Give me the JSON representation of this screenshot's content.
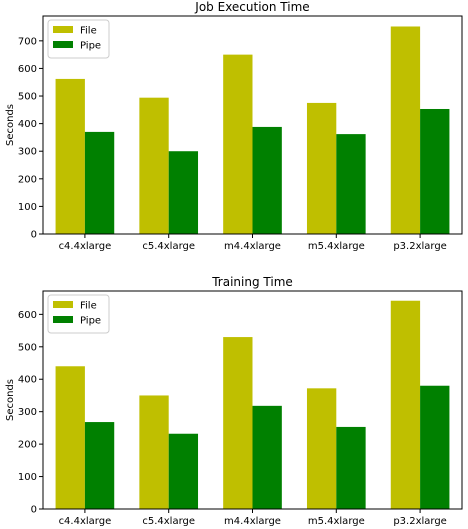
{
  "chart_data": [
    {
      "type": "bar",
      "title": "Job Execution Time",
      "xlabel": "",
      "ylabel": "Seconds",
      "categories": [
        "c4.4xlarge",
        "c5.4xlarge",
        "m4.4xlarge",
        "m5.4xlarge",
        "p3.2xlarge"
      ],
      "series": [
        {
          "name": "File",
          "color": "#bfbf00",
          "values": [
            562,
            494,
            650,
            475,
            752
          ]
        },
        {
          "name": "Pipe",
          "color": "#008000",
          "values": [
            370,
            300,
            388,
            362,
            453
          ]
        }
      ],
      "ylim": [
        0,
        790
      ],
      "yticks": [
        0,
        100,
        200,
        300,
        400,
        500,
        600,
        700
      ],
      "legend": "upper-left",
      "grid": false
    },
    {
      "type": "bar",
      "title": "Training Time",
      "xlabel": "",
      "ylabel": "Seconds",
      "categories": [
        "c4.4xlarge",
        "c5.4xlarge",
        "m4.4xlarge",
        "m5.4xlarge",
        "p3.2xlarge"
      ],
      "series": [
        {
          "name": "File",
          "color": "#bfbf00",
          "values": [
            440,
            350,
            530,
            372,
            642
          ]
        },
        {
          "name": "Pipe",
          "color": "#008000",
          "values": [
            268,
            232,
            318,
            253,
            380
          ]
        }
      ],
      "ylim": [
        0,
        672
      ],
      "yticks": [
        0,
        100,
        200,
        300,
        400,
        500,
        600
      ],
      "legend": "upper-left",
      "grid": false
    }
  ]
}
